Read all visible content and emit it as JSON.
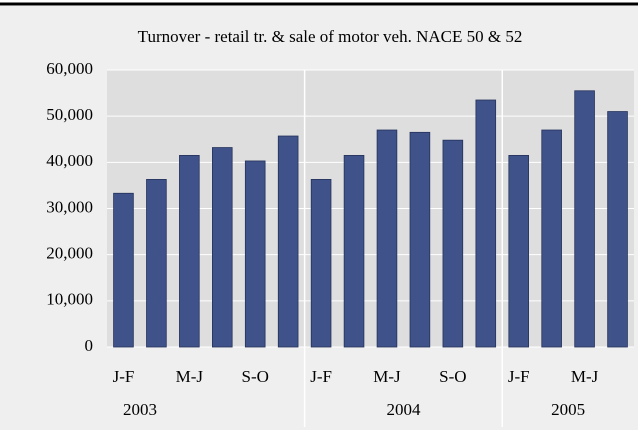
{
  "chart_data": {
    "type": "bar",
    "title": "Turnover - retail tr. & sale of motor veh. NACE 50 & 52",
    "categories": [
      "J-F",
      null,
      "M-J",
      null,
      "S-O",
      null,
      "J-F",
      null,
      "M-J",
      null,
      "S-O",
      null,
      "J-F",
      null,
      "M-J",
      null
    ],
    "year_groups": [
      "2003",
      "2004",
      "2005"
    ],
    "values": [
      33300,
      36300,
      41500,
      43200,
      40300,
      45700,
      36300,
      41500,
      47000,
      46500,
      44800,
      53500,
      41500,
      47000,
      55500,
      51000
    ],
    "color": "#3f5289",
    "ylim": [
      0,
      60000
    ],
    "yticks": [
      0,
      {
        "value": 10000,
        "label": "10,000"
      },
      {
        "value": 20000,
        "label": "20,000"
      },
      {
        "value": 30000,
        "label": "30,000"
      },
      {
        "value": 40000,
        "label": "40,000"
      },
      {
        "value": 50000,
        "label": "50,000"
      },
      {
        "value": 60000,
        "label": "60,000"
      }
    ],
    "grid": true
  }
}
